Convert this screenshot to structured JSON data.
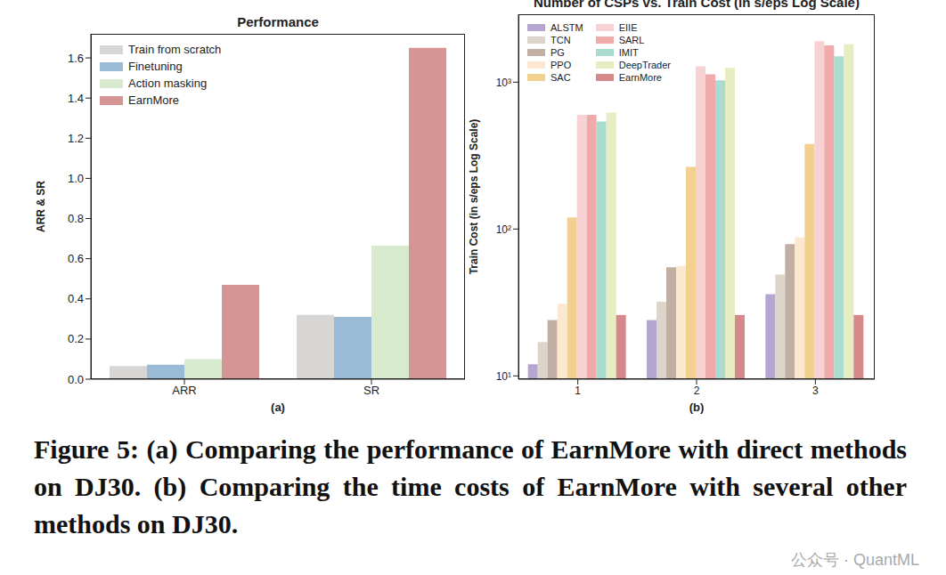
{
  "chart_data": [
    {
      "type": "bar",
      "title": "Performance",
      "x_label": "(a)",
      "y_label": "ARR & SR",
      "categories": [
        "ARR",
        "SR"
      ],
      "series": [
        {
          "name": "Train from scratch",
          "color": "#d8d5d5",
          "values": [
            0.065,
            0.32
          ]
        },
        {
          "name": "Finetuning",
          "color": "#9bbad5",
          "values": [
            0.072,
            0.31
          ]
        },
        {
          "name": "Action masking",
          "color": "#d8ebcf",
          "values": [
            0.1,
            0.665
          ]
        },
        {
          "name": "EarnMore",
          "color": "#d49594",
          "values": [
            0.47,
            1.65
          ]
        }
      ],
      "ylim": [
        0,
        1.72
      ],
      "yticks": [
        {
          "value": 0,
          "label": "0.0"
        },
        0.2,
        0.4,
        0.6,
        0.8,
        {
          "value": 1,
          "label": "1.0"
        },
        1.2,
        1.4,
        1.6
      ],
      "grid": false,
      "legend": "upper left"
    },
    {
      "type": "bar",
      "title": "Number of CSPs vs. Train Cost (in s/eps Log Scale)",
      "x_label": "(b)",
      "y_label": "Train Cost (in s/eps Log Scale)",
      "categories": [
        "1",
        "2",
        "3"
      ],
      "series": [
        {
          "name": "ALSTM",
          "color": "#b4a5d1",
          "values": [
            12,
            24,
            36
          ]
        },
        {
          "name": "TCN",
          "color": "#ddd4ca",
          "values": [
            17,
            32,
            49
          ]
        },
        {
          "name": "PG",
          "color": "#c0afa2",
          "values": [
            24,
            55,
            79
          ]
        },
        {
          "name": "PPO",
          "color": "#fbe8cf",
          "values": [
            31,
            56,
            88
          ]
        },
        {
          "name": "SAC",
          "color": "#f2d08e",
          "values": [
            120,
            265,
            380
          ]
        },
        {
          "name": "EIIE",
          "color": "#f8d2d3",
          "values": [
            600,
            1280,
            1900
          ]
        },
        {
          "name": "SARL",
          "color": "#f0aaa9",
          "values": [
            600,
            1130,
            1780
          ]
        },
        {
          "name": "IMIT",
          "color": "#a9dccf",
          "values": [
            540,
            1030,
            1500
          ]
        },
        {
          "name": "DeepTrader",
          "color": "#e7edc2",
          "values": [
            620,
            1250,
            1820
          ]
        },
        {
          "name": "EarnMore",
          "color": "#d6898a",
          "values": [
            26,
            26,
            26
          ]
        }
      ],
      "ylim": [
        9.5,
        2900
      ],
      "yticks": [
        {
          "value": 10,
          "label": "10¹"
        },
        {
          "value": 100,
          "label": "10²"
        },
        {
          "value": 1000,
          "label": "10³"
        }
      ],
      "log": "y",
      "grid": false,
      "legend": "upper left"
    }
  ],
  "caption": "Figure 5: (a) Comparing the performance of EarnMore with direct methods on DJ30. (b) Comparing the time costs of EarnMore with several other methods on DJ30.",
  "watermark": "公众号 · QuantML"
}
